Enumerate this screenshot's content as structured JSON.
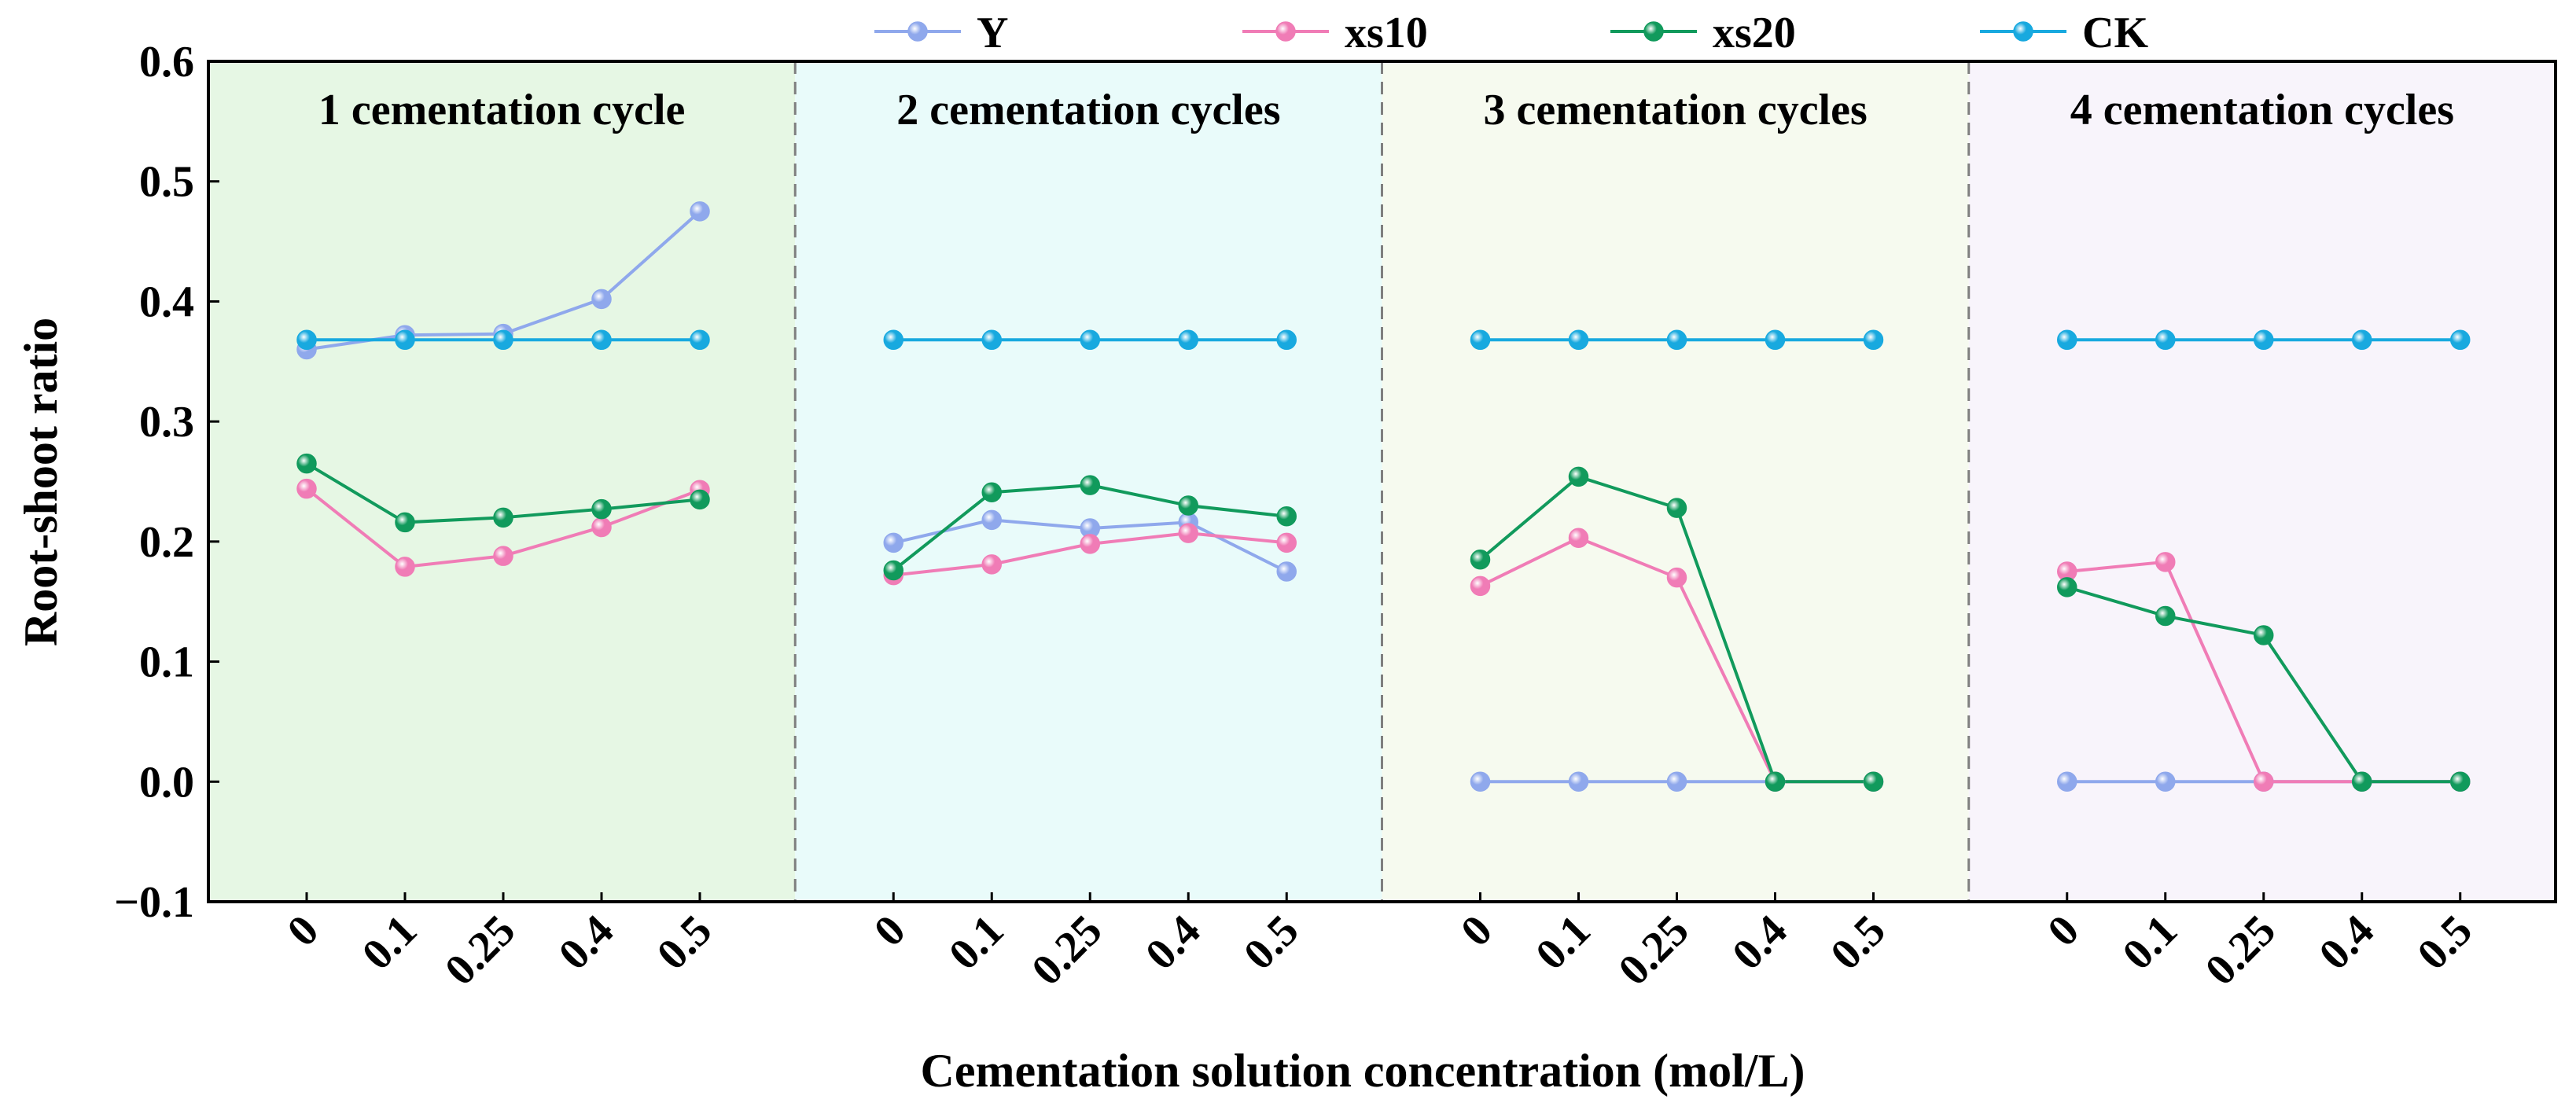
{
  "chart_data": {
    "type": "line",
    "xlabel": "Cementation solution concentration (mol/L)",
    "ylabel": "Root-shoot ratio",
    "ylim": [
      -0.1,
      0.6
    ],
    "yticks": [
      "−0.1",
      "0.0",
      "0.1",
      "0.2",
      "0.3",
      "0.4",
      "0.5",
      "0.6"
    ],
    "categories": [
      "0",
      "0.1",
      "0.25",
      "0.4",
      "0.5"
    ],
    "legend_position": "top-center",
    "legend": [
      {
        "name": "Y",
        "color": "#8fa8ec"
      },
      {
        "name": "xs10",
        "color": "#f07cb6"
      },
      {
        "name": "xs20",
        "color": "#119a5c"
      },
      {
        "name": "CK",
        "color": "#18a9df"
      }
    ],
    "panels": [
      {
        "title": "1 cementation cycle",
        "background": "#e6f7e4",
        "series": [
          {
            "name": "Y",
            "values": [
              0.36,
              0.372,
              0.373,
              0.402,
              0.475
            ]
          },
          {
            "name": "xs10",
            "values": [
              0.244,
              0.179,
              0.188,
              0.212,
              0.243
            ]
          },
          {
            "name": "xs20",
            "values": [
              0.265,
              0.216,
              0.22,
              0.227,
              0.235
            ]
          },
          {
            "name": "CK",
            "values": [
              0.368,
              0.368,
              0.368,
              0.368,
              0.368
            ]
          }
        ]
      },
      {
        "title": "2 cementation cycles",
        "background": "#e9fbfa",
        "series": [
          {
            "name": "Y",
            "values": [
              0.199,
              0.218,
              0.211,
              0.216,
              0.175
            ]
          },
          {
            "name": "xs10",
            "values": [
              0.172,
              0.181,
              0.198,
              0.207,
              0.199
            ]
          },
          {
            "name": "xs20",
            "values": [
              0.176,
              0.241,
              0.247,
              0.23,
              0.221
            ]
          },
          {
            "name": "CK",
            "values": [
              0.368,
              0.368,
              0.368,
              0.368,
              0.368
            ]
          }
        ]
      },
      {
        "title": "3 cementation cycles",
        "background": "#f6faef",
        "series": [
          {
            "name": "Y",
            "values": [
              0.0,
              0.0,
              0.0,
              0.0,
              0.0
            ]
          },
          {
            "name": "xs10",
            "values": [
              0.163,
              0.203,
              0.17,
              0.0,
              0.0
            ]
          },
          {
            "name": "xs20",
            "values": [
              0.185,
              0.254,
              0.228,
              0.0,
              0.0
            ]
          },
          {
            "name": "CK",
            "values": [
              0.368,
              0.368,
              0.368,
              0.368,
              0.368
            ]
          }
        ]
      },
      {
        "title": "4 cementation cycles",
        "background": "#f8f4fb",
        "series": [
          {
            "name": "Y",
            "values": [
              0.0,
              0.0,
              0.0,
              0.0,
              0.0
            ]
          },
          {
            "name": "xs10",
            "values": [
              0.175,
              0.183,
              0.0,
              0.0,
              0.0
            ]
          },
          {
            "name": "xs20",
            "values": [
              0.162,
              0.138,
              0.122,
              0.0,
              0.0
            ]
          },
          {
            "name": "CK",
            "values": [
              0.368,
              0.368,
              0.368,
              0.368,
              0.368
            ]
          }
        ]
      }
    ]
  }
}
